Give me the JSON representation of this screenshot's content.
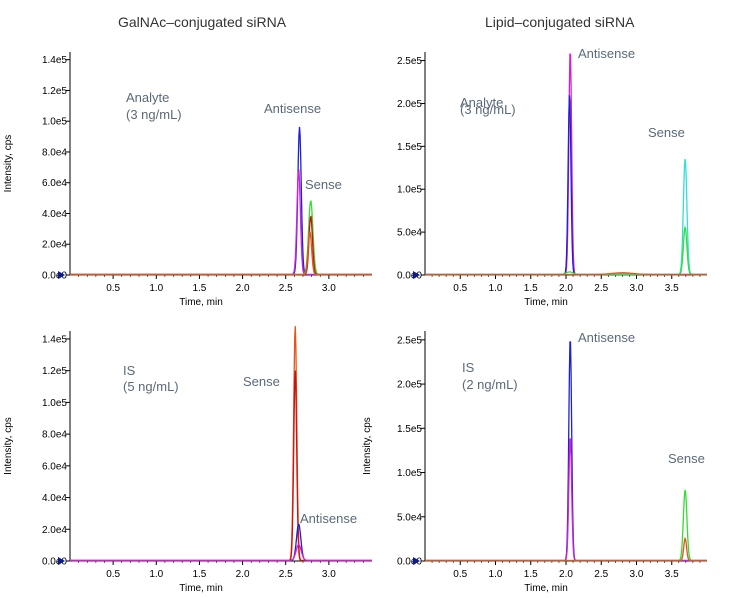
{
  "columns": [
    "GalNAc–conjugated siRNA",
    "Lipid–conjugated siRNA"
  ],
  "colors": {
    "blue": "#1f1fd6",
    "magenta": "#d21fd2",
    "green": "#33dd33",
    "cyan": "#33dddd",
    "orange": "#e0561a",
    "red": "#cc1111",
    "axis": "#000000",
    "annotation": "#5a6a7a",
    "arrow": "#0c1a8c"
  },
  "chart_data": [
    {
      "type": "line",
      "ylabel": "Intensity, cps",
      "xlabel": "Time, min",
      "xlim": [
        0.0,
        3.5
      ],
      "ylim": [
        0,
        145000
      ],
      "xticks": [
        0.5,
        1.0,
        1.5,
        2.0,
        2.5,
        3.0
      ],
      "xtick_labels": [
        "0.5",
        "1.0",
        "1.5",
        "2.0",
        "2.5",
        "3.0"
      ],
      "yticks": [
        0,
        20000,
        40000,
        60000,
        80000,
        100000,
        120000,
        140000
      ],
      "ytick_labels": [
        "0.0e0",
        "2.0e4",
        "4.0e4",
        "6.0e4",
        "8.0e4",
        "1.0e5",
        "1.2e5",
        "1.4e5"
      ],
      "annotations": [
        "Analyte",
        "(3 ng/mL)",
        "Antisense",
        "Sense"
      ],
      "series": [
        {
          "color": "blue",
          "peaks": [
            [
              2.66,
              96000,
              0.02
            ]
          ]
        },
        {
          "color": "magenta",
          "peaks": [
            [
              2.65,
              68000,
              0.02
            ]
          ]
        },
        {
          "color": "green",
          "peaks": [
            [
              2.79,
              48000,
              0.025
            ]
          ]
        },
        {
          "color": "red",
          "peaks": [
            [
              2.79,
              38000,
              0.02
            ]
          ]
        },
        {
          "color": "orange",
          "peaks": [
            [
              2.78,
              28000,
              0.02
            ]
          ]
        }
      ]
    },
    {
      "type": "line",
      "ylabel": "",
      "xlabel": "Time, min",
      "xlim": [
        0.0,
        4.0
      ],
      "ylim": [
        0,
        260000
      ],
      "xticks": [
        0.5,
        1.0,
        1.5,
        2.0,
        2.5,
        3.0,
        3.5
      ],
      "xtick_labels": [
        "0.5",
        "1.0",
        "1.5",
        "2.0",
        "2.5",
        "3.0",
        "3.5"
      ],
      "yticks": [
        0,
        50000,
        100000,
        150000,
        200000,
        250000
      ],
      "ytick_labels": [
        "0.0e0",
        "5.0e4",
        "1.0e5",
        "1.5e5",
        "2.0e5",
        "2.5e5"
      ],
      "annotations": [
        "Analyte",
        "(3 ng/mL)",
        "Antisense",
        "Sense"
      ],
      "series": [
        {
          "color": "magenta",
          "peaks": [
            [
              2.06,
              262000,
              0.02
            ]
          ]
        },
        {
          "color": "blue",
          "peaks": [
            [
              2.05,
              210000,
              0.02
            ]
          ]
        },
        {
          "color": "cyan",
          "peaks": [
            [
              3.69,
              135000,
              0.025
            ]
          ]
        },
        {
          "color": "green",
          "peaks": [
            [
              3.69,
              55000,
              0.025
            ],
            [
              2.05,
              3000,
              0.05
            ]
          ]
        },
        {
          "color": "orange",
          "peaks": [
            [
              2.8,
              2000,
              0.15
            ]
          ]
        }
      ]
    },
    {
      "type": "line",
      "ylabel": "Intensity, cps",
      "xlabel": "Time, min",
      "xlim": [
        0.0,
        3.5
      ],
      "ylim": [
        0,
        145000
      ],
      "xticks": [
        0.5,
        1.0,
        1.5,
        2.0,
        2.5,
        3.0
      ],
      "xtick_labels": [
        "0.5",
        "1.0",
        "1.5",
        "2.0",
        "2.5",
        "3.0"
      ],
      "yticks": [
        0,
        20000,
        40000,
        60000,
        80000,
        100000,
        120000,
        140000
      ],
      "ytick_labels": [
        "0.0e0",
        "2.0e4",
        "4.0e4",
        "6.0e4",
        "8.0e4",
        "1.0e5",
        "1.2e5",
        "1.4e5"
      ],
      "annotations": [
        "IS",
        "(5 ng/mL)",
        "Sense",
        "Antisense"
      ],
      "series": [
        {
          "color": "orange",
          "peaks": [
            [
              2.61,
              148000,
              0.018
            ]
          ]
        },
        {
          "color": "red",
          "peaks": [
            [
              2.61,
              120000,
              0.017
            ]
          ]
        },
        {
          "color": "blue",
          "peaks": [
            [
              2.65,
              23000,
              0.025
            ]
          ]
        },
        {
          "color": "magenta",
          "peaks": [
            [
              2.65,
              10000,
              0.03
            ]
          ]
        }
      ]
    },
    {
      "type": "line",
      "ylabel": "Intensity, cps",
      "xlabel": "Time, min",
      "xlim": [
        0.0,
        4.0
      ],
      "ylim": [
        0,
        260000
      ],
      "xticks": [
        0.5,
        1.0,
        1.5,
        2.0,
        2.5,
        3.0,
        3.5
      ],
      "xtick_labels": [
        "0.5",
        "1.0",
        "1.5",
        "2.0",
        "2.5",
        "3.0",
        "3.5"
      ],
      "yticks": [
        0,
        50000,
        100000,
        150000,
        200000,
        250000
      ],
      "ytick_labels": [
        "0.0e0",
        "5.0e4",
        "1.0e5",
        "1.5e5",
        "2.0e5",
        "2.5e5"
      ],
      "annotations": [
        "IS",
        "(2 ng/mL)",
        "Antisense",
        "Sense"
      ],
      "series": [
        {
          "color": "blue",
          "peaks": [
            [
              2.06,
              252000,
              0.02
            ]
          ]
        },
        {
          "color": "magenta",
          "peaks": [
            [
              2.06,
              140000,
              0.02
            ]
          ]
        },
        {
          "color": "green",
          "peaks": [
            [
              3.69,
              80000,
              0.025
            ]
          ]
        },
        {
          "color": "orange",
          "peaks": [
            [
              3.69,
              25000,
              0.02
            ]
          ]
        }
      ]
    }
  ]
}
